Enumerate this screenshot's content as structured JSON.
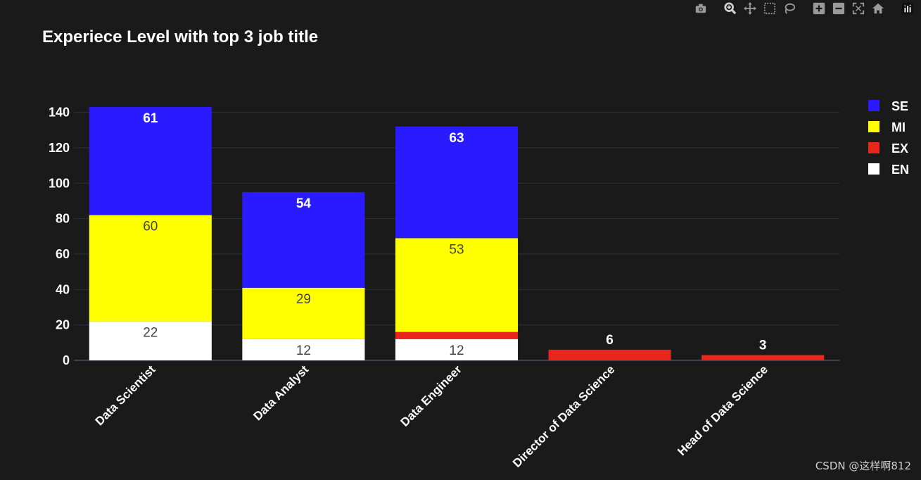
{
  "toolbar": {
    "buttons": [
      {
        "name": "download-png",
        "icon": "camera-icon"
      },
      {
        "name": "zoom",
        "icon": "zoom-icon"
      },
      {
        "name": "pan",
        "icon": "pan-icon"
      },
      {
        "name": "box-select",
        "icon": "box-select-icon"
      },
      {
        "name": "lasso-select",
        "icon": "lasso-icon"
      },
      {
        "name": "zoom-in",
        "icon": "zoom-in-icon"
      },
      {
        "name": "zoom-out",
        "icon": "zoom-out-icon"
      },
      {
        "name": "autoscale",
        "icon": "autoscale-icon"
      },
      {
        "name": "reset-axes",
        "icon": "home-icon"
      },
      {
        "name": "plotly-logo",
        "icon": "plotly-logo-icon"
      }
    ]
  },
  "watermark": "CSDN @这样啊812",
  "chart_data": {
    "type": "bar",
    "barmode": "stack",
    "title": "Experiece Level with top 3 job title",
    "xlabel": "",
    "ylabel": "",
    "ylim": [
      0,
      147
    ],
    "yticks": [
      0,
      20,
      40,
      60,
      80,
      100,
      120,
      140
    ],
    "grid": true,
    "legend_position": "top-right",
    "categories": [
      "Data Scientist",
      "Data Analyst",
      "Data Engineer",
      "Director of Data Science",
      "Head of Data Science"
    ],
    "series": [
      {
        "name": "EN",
        "color": "#ffffff",
        "label_color": "#444444",
        "values": [
          22,
          12,
          12,
          0,
          0
        ],
        "labels": [
          "22",
          "12",
          "12",
          "",
          ""
        ]
      },
      {
        "name": "EX",
        "color": "#e8261c",
        "label_color": "#ffffff",
        "values": [
          0,
          0,
          4,
          6,
          3
        ],
        "labels": [
          "",
          "",
          "",
          "6",
          "3"
        ]
      },
      {
        "name": "MI",
        "color": "#ffff00",
        "label_color": "#444444",
        "values": [
          60,
          29,
          53,
          0,
          0
        ],
        "labels": [
          "60",
          "29",
          "53",
          "",
          ""
        ]
      },
      {
        "name": "SE",
        "color": "#2a1aff",
        "label_color": "#ffffff",
        "values": [
          61,
          54,
          63,
          0,
          0
        ],
        "labels": [
          "61",
          "54",
          "63",
          "",
          ""
        ]
      }
    ],
    "legend_order": [
      "SE",
      "MI",
      "EX",
      "EN"
    ]
  }
}
